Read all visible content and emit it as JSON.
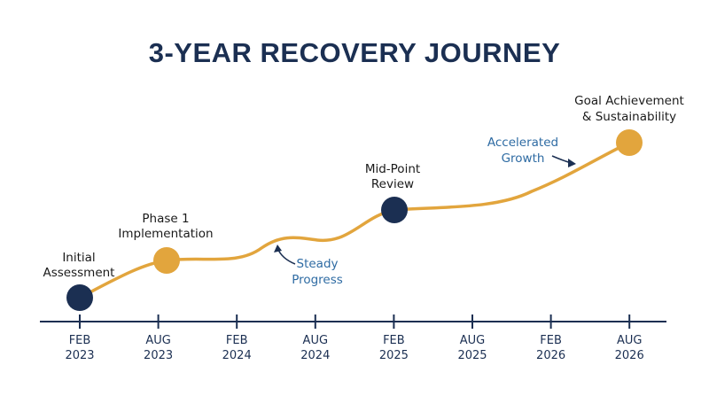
{
  "title": "3-YEAR RECOVERY JOURNEY",
  "colors": {
    "navy": "#1b2f52",
    "gold": "#e2a53d",
    "annotation_blue": "#2e6ba3"
  },
  "timeline": {
    "ticks": [
      {
        "month": "FEB",
        "year": "2023"
      },
      {
        "month": "AUG",
        "year": "2023"
      },
      {
        "month": "FEB",
        "year": "2024"
      },
      {
        "month": "AUG",
        "year": "2024"
      },
      {
        "month": "FEB",
        "year": "2025"
      },
      {
        "month": "AUG",
        "year": "2025"
      },
      {
        "month": "FEB",
        "year": "2026"
      },
      {
        "month": "AUG",
        "year": "2026"
      }
    ]
  },
  "milestones": [
    {
      "lines": [
        "Initial",
        "Assessment"
      ],
      "color": "navy"
    },
    {
      "lines": [
        "Phase 1",
        "Implementation"
      ],
      "color": "gold"
    },
    {
      "lines": [
        "Mid-Point",
        "Review"
      ],
      "color": "navy"
    },
    {
      "lines": [
        "Goal Achievement",
        "& Sustainability"
      ],
      "color": "gold"
    }
  ],
  "annotations": [
    {
      "lines": [
        "Steady",
        "Progress"
      ]
    },
    {
      "lines": [
        "Accelerated",
        "Growth"
      ]
    }
  ]
}
